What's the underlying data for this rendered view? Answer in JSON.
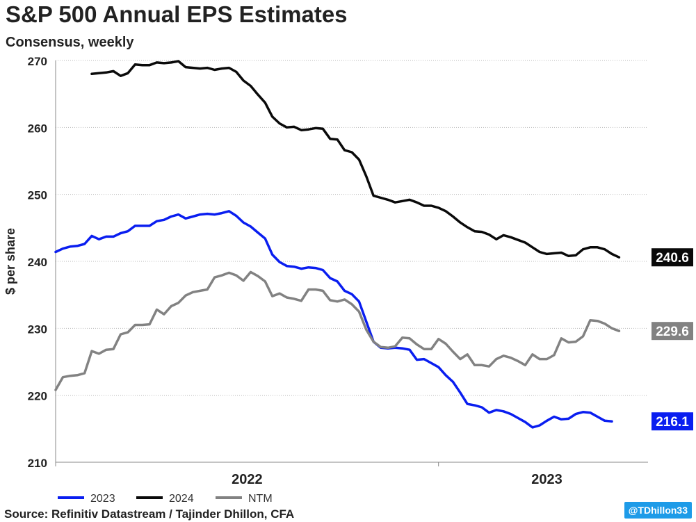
{
  "title": "S&P 500 Annual EPS Estimates",
  "subtitle": "Consensus, weekly",
  "source": "Source: Refinitiv Datastream / Tajinder Dhillon, CFA",
  "handle": "@TDhillon33",
  "chart_data": {
    "type": "line",
    "ylabel": "$ per share",
    "ylim": [
      210,
      270
    ],
    "yticks": [
      210,
      220,
      230,
      240,
      250,
      260,
      270
    ],
    "xlim": [
      0,
      82
    ],
    "x_labels": [
      {
        "x": 26.5,
        "text": "2022"
      },
      {
        "x": 68,
        "text": "2023"
      }
    ],
    "x_dividers": [
      0,
      53
    ],
    "legend": "bottom",
    "series": [
      {
        "name": "2023",
        "color": "#0a1ef0",
        "end_label": "216.1",
        "start": 0,
        "values": [
          241.4,
          241.9,
          242.2,
          242.3,
          242.6,
          243.8,
          243.3,
          243.7,
          243.7,
          244.2,
          244.5,
          245.3,
          245.3,
          245.3,
          246.0,
          246.2,
          246.7,
          247.0,
          246.4,
          246.7,
          247.0,
          247.1,
          247.0,
          247.2,
          247.5,
          246.8,
          245.8,
          245.2,
          244.3,
          243.4,
          241.0,
          239.9,
          239.3,
          239.2,
          238.9,
          239.1,
          239.0,
          238.7,
          237.5,
          237.0,
          235.6,
          235.1,
          234.0,
          231.0,
          228.0,
          227.1,
          227.0,
          227.1,
          227.0,
          226.8,
          225.3,
          225.4,
          224.8,
          224.2,
          223.0,
          222.0,
          220.4,
          218.7,
          218.5,
          218.2,
          217.4,
          217.8,
          217.6,
          217.2,
          216.6,
          216.0,
          215.2,
          215.5,
          216.2,
          216.8,
          216.4,
          216.5,
          217.2,
          217.5,
          217.4,
          216.8,
          216.2,
          216.1
        ]
      },
      {
        "name": "2024",
        "color": "#0a0a0a",
        "end_label": "240.6",
        "start": 5,
        "values": [
          268.0,
          268.1,
          268.2,
          268.4,
          267.7,
          268.1,
          269.4,
          269.3,
          269.3,
          269.7,
          269.6,
          269.7,
          269.9,
          269.0,
          268.9,
          268.8,
          268.9,
          268.6,
          268.8,
          268.9,
          268.3,
          267.0,
          266.2,
          264.9,
          263.7,
          261.6,
          260.6,
          260.0,
          260.1,
          259.6,
          259.7,
          259.9,
          259.8,
          258.3,
          258.2,
          256.6,
          256.3,
          255.2,
          252.7,
          249.8,
          249.5,
          249.2,
          248.8,
          249.0,
          249.2,
          248.8,
          248.3,
          248.3,
          248.0,
          247.5,
          246.7,
          245.8,
          245.1,
          244.5,
          244.4,
          244.0,
          243.3,
          243.9,
          243.6,
          243.2,
          242.8,
          242.1,
          241.4,
          241.1,
          241.2,
          241.3,
          240.8,
          240.9,
          241.8,
          242.1,
          242.1,
          241.8,
          241.1,
          240.6
        ]
      },
      {
        "name": "NTM",
        "color": "#828282",
        "end_label": "229.6",
        "start": 0,
        "values": [
          220.8,
          222.7,
          222.9,
          223.0,
          223.3,
          226.6,
          226.2,
          226.8,
          226.9,
          229.1,
          229.4,
          230.5,
          230.5,
          230.6,
          232.8,
          232.1,
          233.3,
          233.8,
          234.9,
          235.4,
          235.6,
          235.8,
          237.6,
          237.9,
          238.3,
          237.9,
          237.1,
          238.4,
          237.8,
          237.0,
          234.8,
          235.2,
          234.6,
          234.4,
          234.1,
          235.8,
          235.8,
          235.6,
          234.2,
          234.0,
          234.3,
          233.6,
          232.5,
          229.8,
          228.0,
          227.2,
          227.1,
          227.3,
          228.6,
          228.5,
          227.6,
          226.9,
          226.9,
          228.4,
          227.7,
          226.5,
          225.4,
          226.1,
          224.5,
          224.5,
          224.3,
          225.4,
          225.9,
          225.6,
          225.1,
          224.5,
          226.1,
          225.4,
          225.4,
          226.0,
          228.5,
          227.9,
          228.0,
          228.8,
          231.2,
          231.1,
          230.7,
          230.0,
          229.6
        ]
      }
    ]
  }
}
